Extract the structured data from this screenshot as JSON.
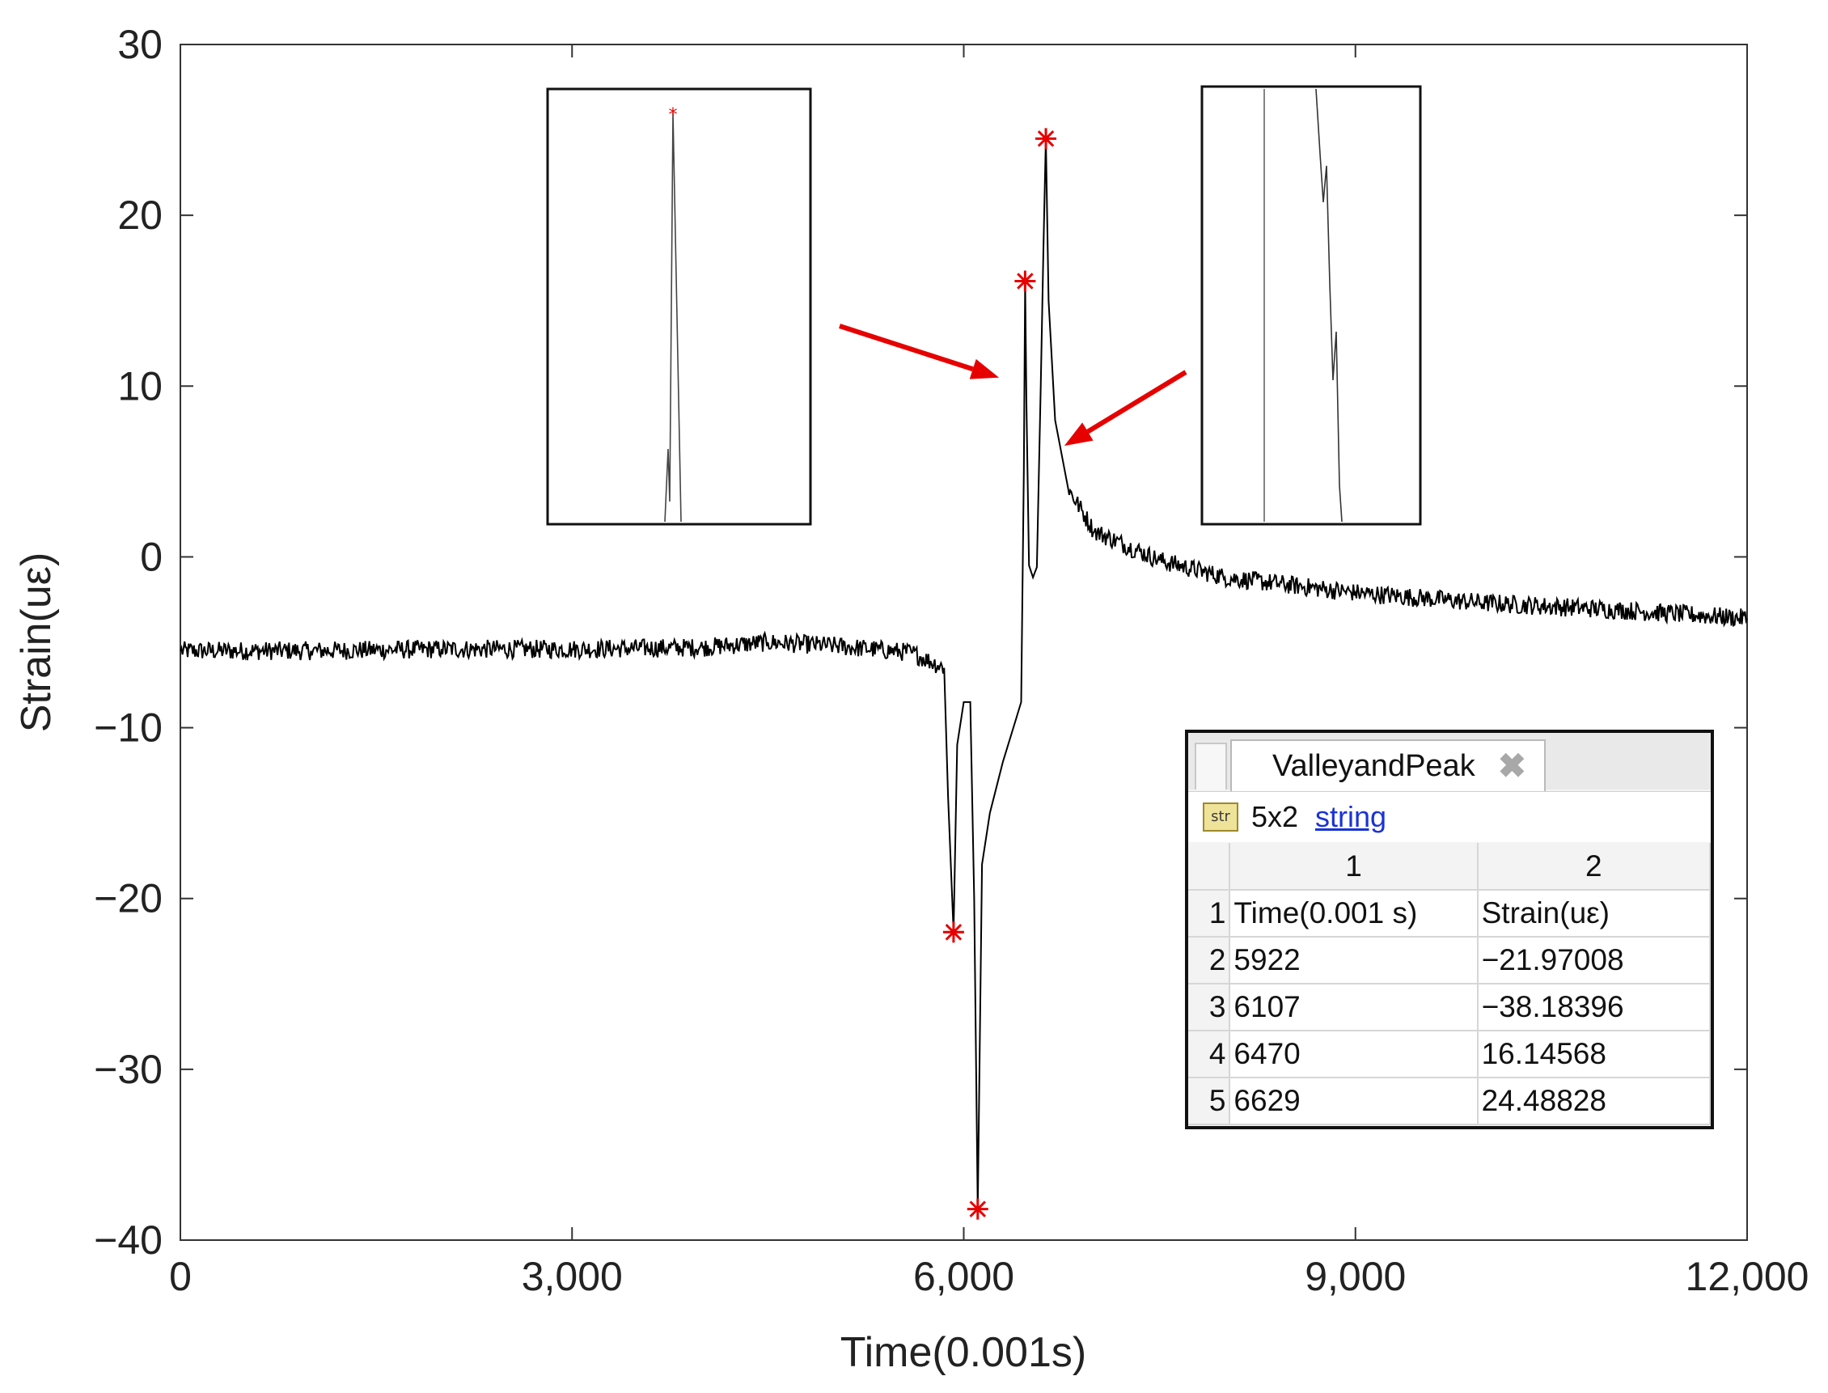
{
  "chart_data": {
    "type": "line",
    "title": "",
    "xlabel": "Time(0.001s)",
    "ylabel": "Strain(uε)",
    "xlim": [
      0,
      12000
    ],
    "ylim": [
      -40,
      30
    ],
    "xticks": [
      0,
      3000,
      6000,
      9000,
      12000
    ],
    "xtick_labels": [
      "0",
      "3,000",
      "6,000",
      "9,000",
      "12,000"
    ],
    "yticks": [
      30,
      20,
      10,
      0,
      -10,
      -20,
      -30,
      -40
    ],
    "ytick_labels": [
      "30",
      "20",
      "10",
      "0",
      "−10",
      "−20",
      "−30",
      "−40"
    ],
    "grid": false,
    "series": [
      {
        "color": "#000000",
        "x": [
          0,
          1000,
          2000,
          3000,
          4000,
          4500,
          5000,
          5600,
          5850,
          5880,
          5922,
          5950,
          6000,
          6050,
          6080,
          6107,
          6140,
          6200,
          6300,
          6400,
          6440,
          6460,
          6470,
          6480,
          6500,
          6530,
          6560,
          6590,
          6610,
          6629,
          6650,
          6700,
          6800,
          7000,
          7500,
          8000,
          9000,
          10000,
          11000,
          12000
        ],
        "y": [
          -5.5,
          -5.5,
          -5.4,
          -5.4,
          -5.3,
          -5.0,
          -5.2,
          -5.6,
          -6.5,
          -14,
          -21.97,
          -11,
          -8.5,
          -8.5,
          -20,
          -38.18,
          -18,
          -15,
          -12,
          -9.5,
          -8.5,
          5,
          16.15,
          9,
          -0.5,
          -1.2,
          -0.6,
          10,
          18,
          24.49,
          15,
          8,
          4,
          1.5,
          -0.2,
          -1.2,
          -2.1,
          -2.7,
          -3.1,
          -3.6
        ]
      }
    ],
    "markers": [
      {
        "x": 5922,
        "y": -21.97008,
        "color": "#e60000",
        "symbol": "*"
      },
      {
        "x": 6107,
        "y": -38.18396,
        "color": "#e60000",
        "symbol": "*"
      },
      {
        "x": 6470,
        "y": 16.14568,
        "color": "#e60000",
        "symbol": "*"
      },
      {
        "x": 6629,
        "y": 24.48828,
        "color": "#e60000",
        "symbol": "*"
      }
    ],
    "annotations": [
      {
        "kind": "arrow",
        "target_x": 6270,
        "target_y": 10.5,
        "color": "#e60000"
      },
      {
        "kind": "arrow",
        "target_x": 6770,
        "target_y": 6.5,
        "color": "#e60000"
      }
    ]
  },
  "variable_viewer": {
    "tab_label": "ValleyandPeak",
    "close_glyph": "✖",
    "icon_text": "str",
    "size_text": "5x2",
    "class_text": "string",
    "column_headers": [
      "1",
      "2"
    ],
    "rows": [
      {
        "row": "1",
        "c1": "Time(0.001 s)",
        "c2": "Strain(uε)"
      },
      {
        "row": "2",
        "c1": "5922",
        "c2": "−21.97008"
      },
      {
        "row": "3",
        "c1": "6107",
        "c2": "−38.18396"
      },
      {
        "row": "4",
        "c1": "6470",
        "c2": "16.14568"
      },
      {
        "row": "5",
        "c1": "6629",
        "c2": "24.48828"
      }
    ]
  },
  "colors": {
    "line": "#000000",
    "marker": "#e60000",
    "arrow": "#e60000",
    "link": "#1a33d6"
  }
}
